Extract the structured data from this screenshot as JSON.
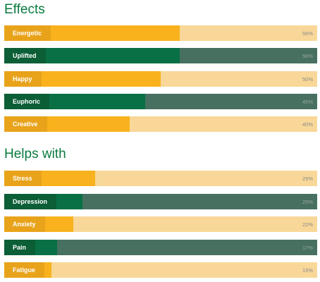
{
  "effects": {
    "title": "Effects",
    "items": [
      {
        "label": "Energetic",
        "percent_text": "56%",
        "value": 56,
        "color": "yellow"
      },
      {
        "label": "Uplifted",
        "percent_text": "56%",
        "value": 56,
        "color": "green"
      },
      {
        "label": "Happy",
        "percent_text": "50%",
        "value": 50,
        "color": "yellow"
      },
      {
        "label": "Euphoric",
        "percent_text": "45%",
        "value": 45,
        "color": "green"
      },
      {
        "label": "Creative",
        "percent_text": "40%",
        "value": 40,
        "color": "yellow"
      }
    ]
  },
  "helps_with": {
    "title": "Helps with",
    "items": [
      {
        "label": "Stress",
        "percent_text": "29%",
        "value": 29,
        "color": "yellow"
      },
      {
        "label": "Depression",
        "percent_text": "25%",
        "value": 25,
        "color": "green"
      },
      {
        "label": "Anxiety",
        "percent_text": "22%",
        "value": 22,
        "color": "yellow"
      },
      {
        "label": "Pain",
        "percent_text": "17%",
        "value": 17,
        "color": "green"
      },
      {
        "label": "Fatigue",
        "percent_text": "15%",
        "value": 15,
        "color": "yellow"
      }
    ]
  },
  "colors": {
    "brand_green": "#0a7a3f",
    "bar_yellow": "#f9b21d",
    "track_yellow": "#f8d798",
    "bar_green": "#087044",
    "track_green": "#477060"
  }
}
